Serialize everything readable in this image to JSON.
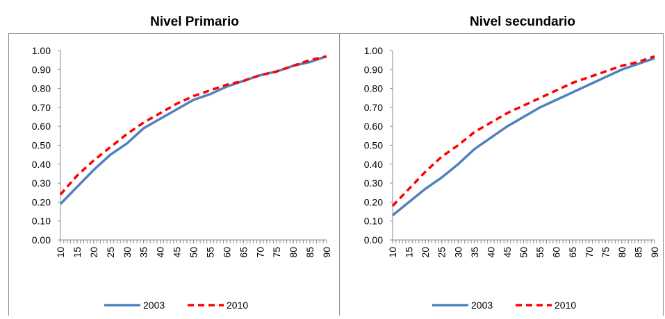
{
  "chart_data": [
    {
      "type": "line",
      "title": "Nivel Primario",
      "x": [
        10,
        15,
        20,
        25,
        30,
        35,
        40,
        45,
        50,
        55,
        60,
        65,
        70,
        75,
        80,
        85,
        90
      ],
      "series": [
        {
          "name": "2003",
          "color": "#4f81bd",
          "style": "solid",
          "values": [
            0.19,
            0.28,
            0.37,
            0.45,
            0.51,
            0.59,
            0.64,
            0.69,
            0.74,
            0.77,
            0.81,
            0.84,
            0.87,
            0.89,
            0.92,
            0.94,
            0.97
          ]
        },
        {
          "name": "2010",
          "color": "#ff0000",
          "style": "dashed",
          "values": [
            0.24,
            0.34,
            0.42,
            0.49,
            0.56,
            0.62,
            0.67,
            0.72,
            0.76,
            0.79,
            0.82,
            0.84,
            0.87,
            0.89,
            0.92,
            0.95,
            0.97
          ]
        }
      ],
      "xlim": [
        10,
        90
      ],
      "xticks": [
        10,
        15,
        20,
        25,
        30,
        35,
        40,
        45,
        50,
        55,
        60,
        65,
        70,
        75,
        80,
        85,
        90
      ],
      "ylim": [
        0,
        1
      ],
      "yticks": [
        {
          "value": 0,
          "label": "0.00"
        },
        {
          "value": 0.1,
          "label": "0.10"
        },
        {
          "value": 0.2,
          "label": "0.20"
        },
        {
          "value": 0.3,
          "label": "0.30"
        },
        {
          "value": 0.4,
          "label": "0.40"
        },
        {
          "value": 0.5,
          "label": "0.50"
        },
        {
          "value": 0.6,
          "label": "0.60"
        },
        {
          "value": 0.7,
          "label": "0.70"
        },
        {
          "value": 0.8,
          "label": "0.80"
        },
        {
          "value": 0.9,
          "label": "0.90"
        },
        {
          "value": 1,
          "label": "1.00"
        }
      ],
      "legend": "bottom"
    },
    {
      "type": "line",
      "title": "Nivel secundario",
      "x": [
        10,
        15,
        20,
        25,
        30,
        35,
        40,
        45,
        50,
        55,
        60,
        65,
        70,
        75,
        80,
        85,
        90
      ],
      "series": [
        {
          "name": "2003",
          "color": "#4f81bd",
          "style": "solid",
          "values": [
            0.13,
            0.2,
            0.27,
            0.33,
            0.4,
            0.48,
            0.54,
            0.6,
            0.65,
            0.7,
            0.74,
            0.78,
            0.82,
            0.86,
            0.9,
            0.93,
            0.96
          ]
        },
        {
          "name": "2010",
          "color": "#ff0000",
          "style": "dashed",
          "values": [
            0.18,
            0.27,
            0.36,
            0.44,
            0.5,
            0.57,
            0.62,
            0.67,
            0.71,
            0.75,
            0.79,
            0.83,
            0.86,
            0.89,
            0.92,
            0.94,
            0.97
          ]
        }
      ],
      "xlim": [
        10,
        90
      ],
      "xticks": [
        10,
        15,
        20,
        25,
        30,
        35,
        40,
        45,
        50,
        55,
        60,
        65,
        70,
        75,
        80,
        85,
        90
      ],
      "ylim": [
        0,
        1
      ],
      "yticks": [
        {
          "value": 0,
          "label": "0.00"
        },
        {
          "value": 0.1,
          "label": "0.10"
        },
        {
          "value": 0.2,
          "label": "0.20"
        },
        {
          "value": 0.3,
          "label": "0.30"
        },
        {
          "value": 0.4,
          "label": "0.40"
        },
        {
          "value": 0.5,
          "label": "0.50"
        },
        {
          "value": 0.6,
          "label": "0.60"
        },
        {
          "value": 0.7,
          "label": "0.70"
        },
        {
          "value": 0.8,
          "label": "0.80"
        },
        {
          "value": 0.9,
          "label": "0.90"
        },
        {
          "value": 1,
          "label": "1.00"
        }
      ],
      "legend": "bottom"
    }
  ]
}
